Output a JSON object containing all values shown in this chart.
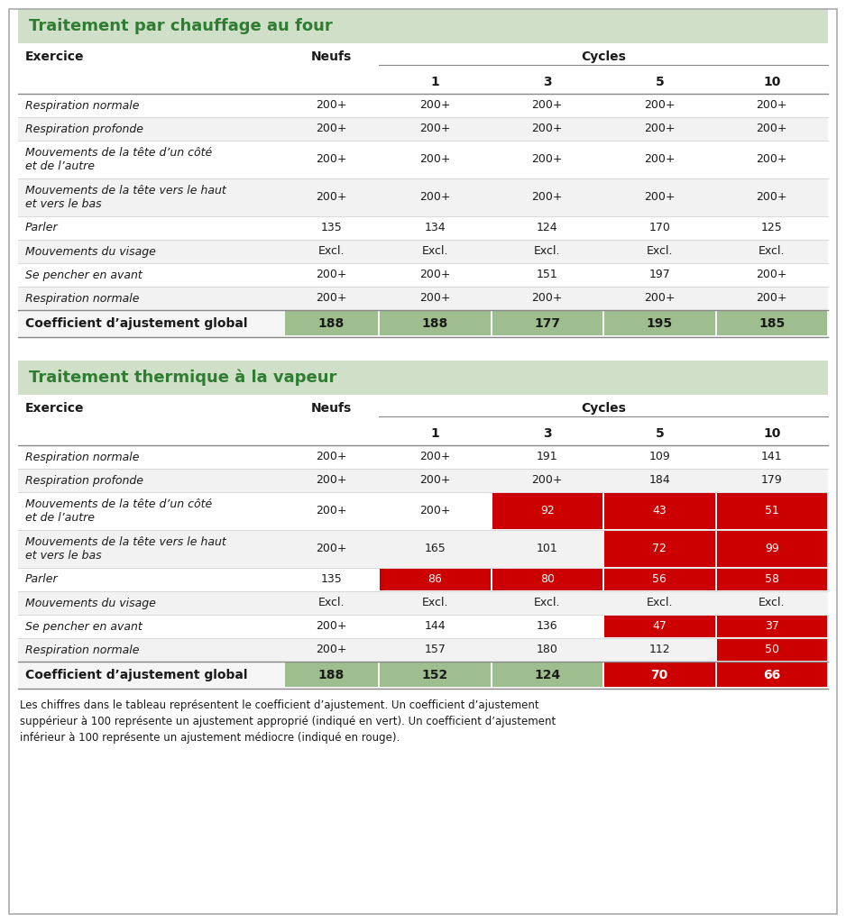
{
  "title1": "Traitement par chauffage au four",
  "title2": "Traitement thermique à la vapeur",
  "col_header_exercice": "Exercice",
  "col_header_neufs": "Neufs",
  "cycles_label": "Cycles",
  "cycle_nums": [
    "1",
    "3",
    "5",
    "10"
  ],
  "table1_rows": [
    [
      "Respiration normale",
      "200+",
      "200+",
      "200+",
      "200+",
      "200+"
    ],
    [
      "Respiration profonde",
      "200+",
      "200+",
      "200+",
      "200+",
      "200+"
    ],
    [
      "Mouvements de la tête d’un côté\net de l’autre",
      "200+",
      "200+",
      "200+",
      "200+",
      "200+"
    ],
    [
      "Mouvements de la tête vers le haut\net vers le bas",
      "200+",
      "200+",
      "200+",
      "200+",
      "200+"
    ],
    [
      "Parler",
      "135",
      "134",
      "124",
      "170",
      "125"
    ],
    [
      "Mouvements du visage",
      "Excl.",
      "Excl.",
      "Excl.",
      "Excl.",
      "Excl."
    ],
    [
      "Se pencher en avant",
      "200+",
      "200+",
      "151",
      "197",
      "200+"
    ],
    [
      "Respiration normale",
      "200+",
      "200+",
      "200+",
      "200+",
      "200+"
    ]
  ],
  "table1_total": [
    "Coefficient d’ajustement global",
    "188",
    "188",
    "177",
    "195",
    "185"
  ],
  "table2_rows": [
    [
      "Respiration normale",
      "200+",
      "200+",
      "191",
      "109",
      "141"
    ],
    [
      "Respiration profonde",
      "200+",
      "200+",
      "200+",
      "184",
      "179"
    ],
    [
      "Mouvements de la tête d’un côté\net de l’autre",
      "200+",
      "200+",
      "92",
      "43",
      "51"
    ],
    [
      "Mouvements de la tête vers le haut\net vers le bas",
      "200+",
      "165",
      "101",
      "72",
      "99"
    ],
    [
      "Parler",
      "135",
      "86",
      "80",
      "56",
      "58"
    ],
    [
      "Mouvements du visage",
      "Excl.",
      "Excl.",
      "Excl.",
      "Excl.",
      "Excl."
    ],
    [
      "Se pencher en avant",
      "200+",
      "144",
      "136",
      "47",
      "37"
    ],
    [
      "Respiration normale",
      "200+",
      "157",
      "180",
      "112",
      "50"
    ]
  ],
  "table2_total": [
    "Coefficient d’ajustement global",
    "188",
    "152",
    "124",
    "70",
    "66"
  ],
  "color_header_bg": "#cfdfc8",
  "color_green_cell": "#9fc eighteen",
  "color_red_bg": "#cc0000",
  "color_title_green": "#2e7d32",
  "color_dark_text": "#1a1a1a",
  "color_white": "#ffffff",
  "color_row_alt": "#eeeeee",
  "color_border": "#aaaaaa",
  "footer_text": "Les chiffres dans le tableau représentent le coefficient d’ajustement. Un coefficient d’ajustement\nsuppérieur à 100 représente un ajustement approprié (indiqué en vert). Un coefficient d’ajustement\ninférieur à 100 représente un ajustement médiocre (indiqué en rouge)."
}
